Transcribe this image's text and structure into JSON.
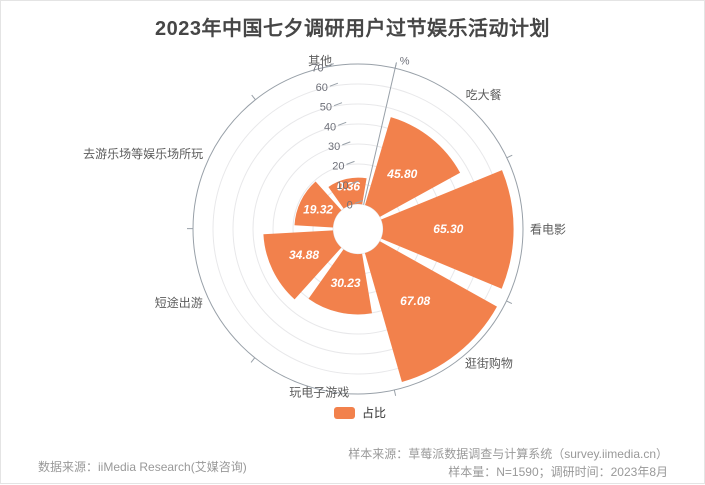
{
  "title": "2023年中国七夕调研用户过节娱乐活动计划",
  "legend": {
    "label": "占比"
  },
  "footer": {
    "left": "数据来源：iiMedia Research(艾媒咨询)",
    "right_line1": "样本来源：草莓派数据调查与计算系统（survey.iimedia.cn）",
    "right_line2": "样本量：N=1590；调研时间：2023年8月"
  },
  "colors": {
    "bar": "#F2814C",
    "axis_line": "#98A0A8",
    "grid_line": "#E8E8EA",
    "bar_label": "#FFFFFF",
    "category_label": "#5C5C5C",
    "tick_label": "#6E7079",
    "title": "#464646",
    "legend_text": "#333333",
    "footer_text": "#999999"
  },
  "chart_data": {
    "type": "bar",
    "subtype": "polar-rose-donut",
    "title": "2023年中国七夕调研用户过节娱乐活动计划",
    "series_name": "占比",
    "categories": [
      "吃大餐",
      "看电影",
      "逛街购物",
      "玩电子游戏",
      "短途出游",
      "去游乐场等娱乐场所玩",
      "其他"
    ],
    "values": [
      45.8,
      65.3,
      67.08,
      30.23,
      34.88,
      19.32,
      0.36
    ],
    "value_labels": [
      "45.80",
      "65.30",
      "67.08",
      "30.23",
      "34.88",
      "19.32",
      "0.36"
    ],
    "radial_axis": {
      "min": 0,
      "max": 70,
      "ticks": [
        0,
        10,
        20,
        30,
        40,
        50,
        60,
        70
      ],
      "unit": "%"
    },
    "layout_hints": {
      "grid": "concentric-circles",
      "legend_position": "bottom-center",
      "direction": "clockwise-from-top",
      "labels_inside_bars": true
    }
  }
}
